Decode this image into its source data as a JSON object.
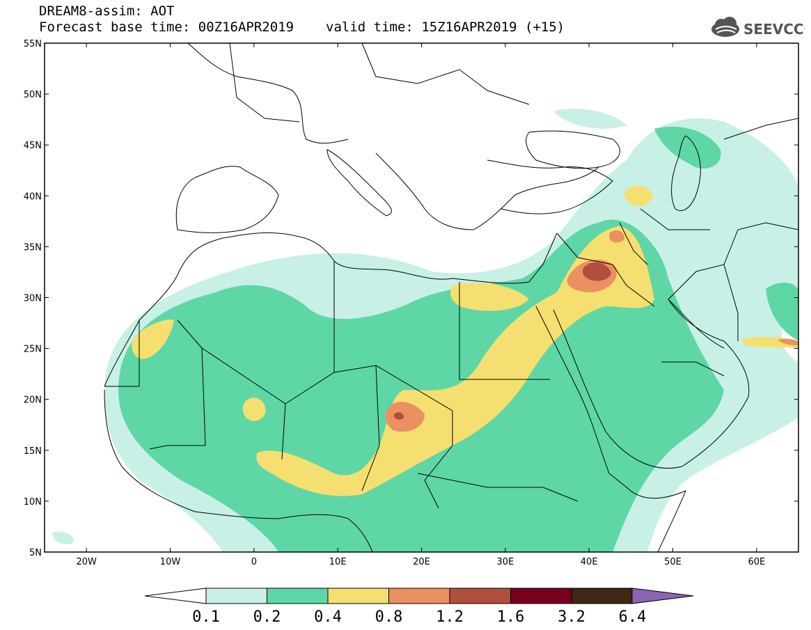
{
  "header": {
    "title": "DREAM8-assim: AOT",
    "base_time_label": "Forecast base time: 00Z16APR2019",
    "valid_time_label": "valid time: 15Z16APR2019 (+15)",
    "logo_text": "SEEVCCC",
    "logo_icon": "cloud-icon"
  },
  "map": {
    "lat_labels": [
      "55N",
      "50N",
      "45N",
      "40N",
      "35N",
      "30N",
      "25N",
      "20N",
      "15N",
      "10N",
      "5N"
    ],
    "lon_labels": [
      "20W",
      "10W",
      "0",
      "10E",
      "20E",
      "30E",
      "40E",
      "50E",
      "60E"
    ],
    "lon_range": [
      -25,
      65
    ],
    "lat_range": [
      5,
      55
    ]
  },
  "colorbar": {
    "labels": [
      "0.1",
      "0.2",
      "0.4",
      "0.8",
      "1.2",
      "1.6",
      "3.2",
      "6.4"
    ],
    "colors": [
      "#c8f0e6",
      "#5fd6a6",
      "#f5df70",
      "#eb9060",
      "#b0503c",
      "#78001c",
      "#3c2814",
      "#8b64b4"
    ]
  }
}
